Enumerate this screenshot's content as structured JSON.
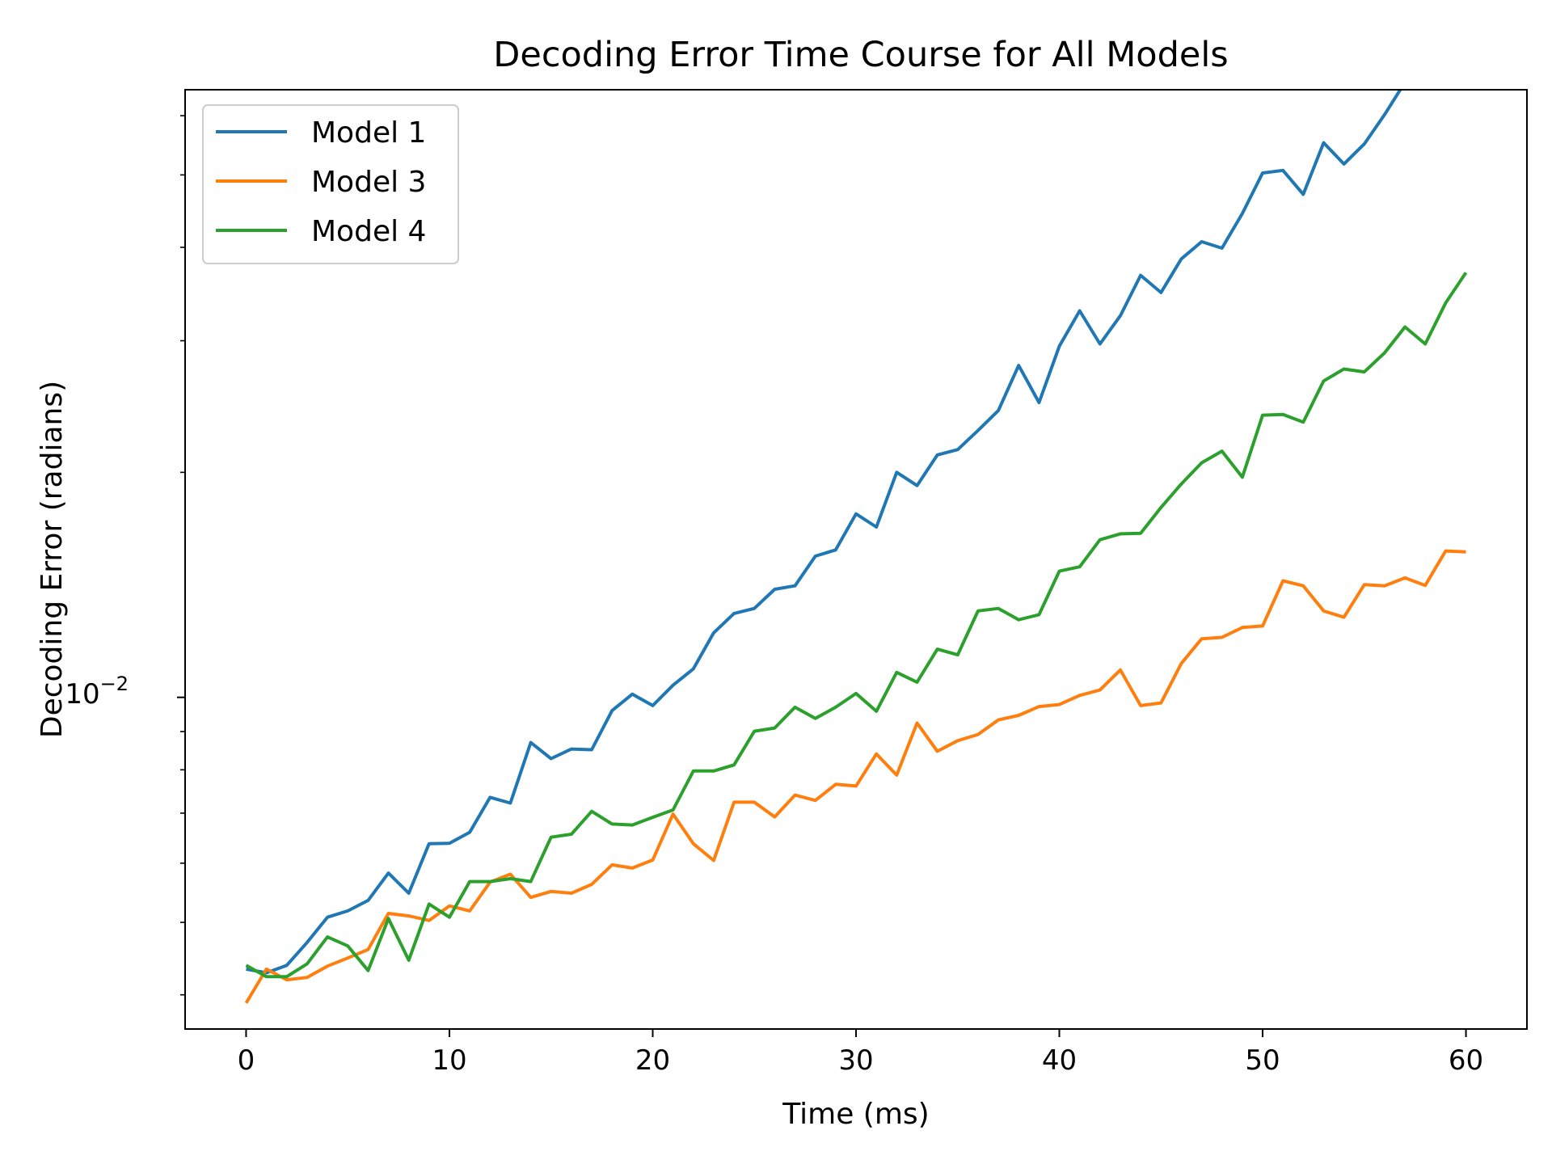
{
  "chart_data": {
    "type": "line",
    "title": "Decoding Error Time Course for All Models",
    "xlabel": "Time (ms)",
    "ylabel": "Decoding Error (radians)",
    "y_scale": "log",
    "xlim": [
      -3,
      63
    ],
    "ylim": [
      0.0036,
      0.065
    ],
    "x_ticks": [
      0,
      10,
      20,
      30,
      40,
      50,
      60
    ],
    "x_tick_labels": [
      "0",
      "10",
      "20",
      "30",
      "40",
      "50",
      "60"
    ],
    "y_major_tick_base": "10",
    "y_major_tick_exponent": "−2",
    "y_major_tick_value": 0.01,
    "y_minor_ticks": [
      0.004,
      0.005,
      0.006,
      0.007,
      0.008,
      0.009,
      0.02,
      0.03,
      0.04,
      0.05,
      0.06
    ],
    "grid": false,
    "legend_position": "upper-left",
    "x": [
      0,
      1,
      2,
      3,
      4,
      5,
      6,
      7,
      8,
      9,
      10,
      11,
      12,
      13,
      14,
      15,
      16,
      17,
      18,
      19,
      20,
      21,
      22,
      23,
      24,
      25,
      26,
      27,
      28,
      29,
      30,
      31,
      32,
      33,
      34,
      35,
      36,
      37,
      38,
      39,
      40,
      41,
      42,
      43,
      44,
      45,
      46,
      47,
      48,
      49,
      50,
      51,
      52,
      53,
      54,
      55,
      56,
      57,
      58,
      59,
      60
    ],
    "series": [
      {
        "name": "Model 1",
        "color": "#1f77b4",
        "values": [
          0.00433,
          0.00428,
          0.00438,
          0.0047,
          0.00508,
          0.00518,
          0.00535,
          0.00582,
          0.00547,
          0.00637,
          0.00638,
          0.0066,
          0.00735,
          0.00722,
          0.0087,
          0.00828,
          0.00853,
          0.00851,
          0.0096,
          0.0101,
          0.00975,
          0.01038,
          0.01092,
          0.0122,
          0.01295,
          0.01315,
          0.01395,
          0.0141,
          0.01545,
          0.01575,
          0.0176,
          0.0169,
          0.02,
          0.0192,
          0.0211,
          0.02145,
          0.02275,
          0.0242,
          0.0278,
          0.0248,
          0.0295,
          0.0329,
          0.0297,
          0.0324,
          0.0367,
          0.0348,
          0.0386,
          0.0407,
          0.0399,
          0.0444,
          0.0503,
          0.0507,
          0.0471,
          0.0552,
          0.0517,
          0.055,
          0.0602,
          0.0665,
          0.0659,
          0.071,
          0.0705
        ]
      },
      {
        "name": "Model 3",
        "color": "#ff7f0e",
        "values": [
          0.0039,
          0.00433,
          0.00419,
          0.00422,
          0.00437,
          0.00448,
          0.0046,
          0.00514,
          0.0051,
          0.00503,
          0.00526,
          0.00518,
          0.00566,
          0.0058,
          0.0054,
          0.0055,
          0.00547,
          0.00562,
          0.00597,
          0.00591,
          0.00606,
          0.00698,
          0.00637,
          0.00605,
          0.00724,
          0.00724,
          0.00692,
          0.0074,
          0.00728,
          0.00765,
          0.00761,
          0.0084,
          0.00787,
          0.00924,
          0.00847,
          0.00875,
          0.00892,
          0.00933,
          0.00946,
          0.00972,
          0.00978,
          0.01006,
          0.01023,
          0.01088,
          0.00975,
          0.00983,
          0.0111,
          0.01198,
          0.01203,
          0.0124,
          0.01246,
          0.01432,
          0.0141,
          0.01305,
          0.0128,
          0.01415,
          0.0141,
          0.01445,
          0.01412,
          0.0157,
          0.01565
        ]
      },
      {
        "name": "Model 4",
        "color": "#2ca02c",
        "values": [
          0.00438,
          0.00423,
          0.00423,
          0.0044,
          0.00478,
          0.00465,
          0.00431,
          0.00506,
          0.00445,
          0.00529,
          0.00508,
          0.00567,
          0.00567,
          0.00572,
          0.00567,
          0.0065,
          0.00656,
          0.00704,
          0.00677,
          0.00675,
          0.00691,
          0.00707,
          0.00797,
          0.00797,
          0.00812,
          0.00901,
          0.0091,
          0.0097,
          0.00937,
          0.0097,
          0.01012,
          0.00958,
          0.0108,
          0.01048,
          0.0116,
          0.0114,
          0.01305,
          0.01315,
          0.0127,
          0.0129,
          0.01475,
          0.01495,
          0.01625,
          0.01655,
          0.01658,
          0.01795,
          0.0193,
          0.0206,
          0.02135,
          0.0197,
          0.02385,
          0.0239,
          0.02335,
          0.0265,
          0.0275,
          0.02725,
          0.0289,
          0.0313,
          0.0297,
          0.0337,
          0.037
        ]
      }
    ]
  }
}
